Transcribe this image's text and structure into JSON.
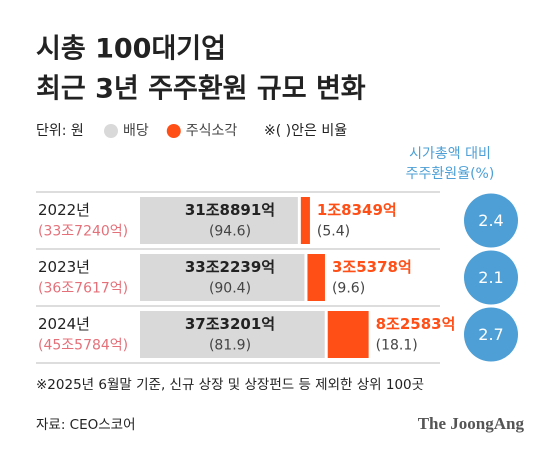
{
  "chart_data": {
    "type": "bar",
    "title": [
      "시총 100대기업",
      "최근 3년 주주환원 규모 변화"
    ],
    "unit": "단위: 원",
    "legend_note": "※( )안은 비율",
    "categories": [
      "2022년",
      "2023년",
      "2024년"
    ],
    "total_labels": [
      "(33조7240억)",
      "(36조7617억)",
      "(45조5784억)"
    ],
    "series": [
      {
        "name": "배당",
        "color": "#d9d9d9",
        "values": [
          318891,
          332239,
          373201
        ],
        "value_labels": [
          "31조8891억",
          "33조2239억",
          "37조3201억"
        ],
        "share_labels": [
          "(94.6)",
          "(90.4)",
          "(81.9)"
        ]
      },
      {
        "name": "주식소각",
        "color": "#ff4f17",
        "values": [
          18349,
          35378,
          82583
        ],
        "value_labels": [
          "1조8349억",
          "3조5378억",
          "8조2583억"
        ],
        "share_labels": [
          "(5.4)",
          "(9.6)",
          "(18.1)"
        ]
      }
    ],
    "ratio": {
      "label": [
        "시가총액 대비",
        "주주환원율(%)"
      ],
      "color": "#4d9fd6",
      "values": [
        2.4,
        2.1,
        2.7
      ]
    },
    "footnote": "※2025년 6월말 기준, 신규 상장 및 상장펀드 등 제외한 상위 100곳",
    "source": "자료: CEO스코어",
    "brand": "The JoongAng"
  }
}
